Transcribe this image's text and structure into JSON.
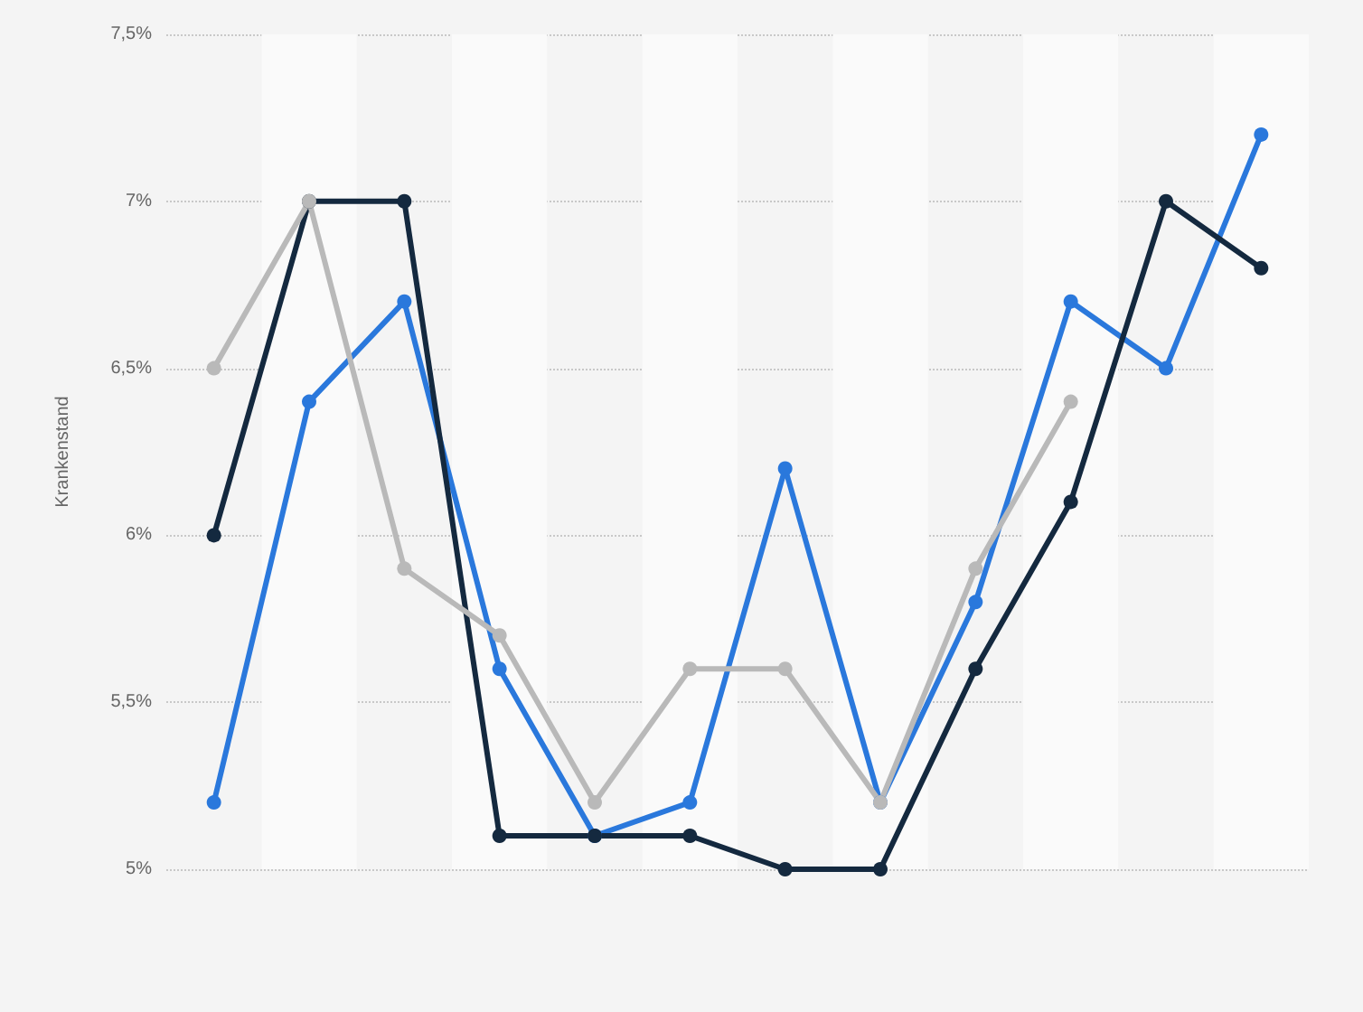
{
  "chart_data": {
    "type": "line",
    "ylabel": "Krankenstand",
    "categories": [
      null,
      null,
      null,
      null,
      null,
      null,
      null,
      null,
      null,
      null,
      null,
      null
    ],
    "series": [
      {
        "color": "#2a78dc",
        "values": [
          5.2,
          6.4,
          6.7,
          5.6,
          5.1,
          5.2,
          6.2,
          5.2,
          5.8,
          6.7,
          6.5,
          7.2
        ]
      },
      {
        "color": "#14293f",
        "values": [
          6.0,
          7.0,
          7.0,
          5.1,
          5.1,
          5.1,
          5.0,
          5.0,
          5.6,
          6.1,
          7.0,
          6.8
        ]
      },
      {
        "color": "#b9b9b9",
        "values": [
          6.5,
          7.0,
          5.9,
          5.7,
          5.2,
          5.6,
          5.6,
          5.2,
          5.9,
          6.4,
          null,
          null
        ]
      }
    ],
    "ylim": [
      5,
      7.5
    ],
    "yticks": [
      {
        "value": 5,
        "label": "5%"
      },
      {
        "value": 5.5,
        "label": "5,5%"
      },
      {
        "value": 6,
        "label": "6%"
      },
      {
        "value": 6.5,
        "label": "6,5%"
      },
      {
        "value": 7,
        "label": "7%"
      },
      {
        "value": 7.5,
        "label": "7,5%"
      }
    ],
    "grid": "y",
    "legend": false,
    "marker": "circle",
    "line_style": "solid",
    "tick_labels": "y"
  }
}
